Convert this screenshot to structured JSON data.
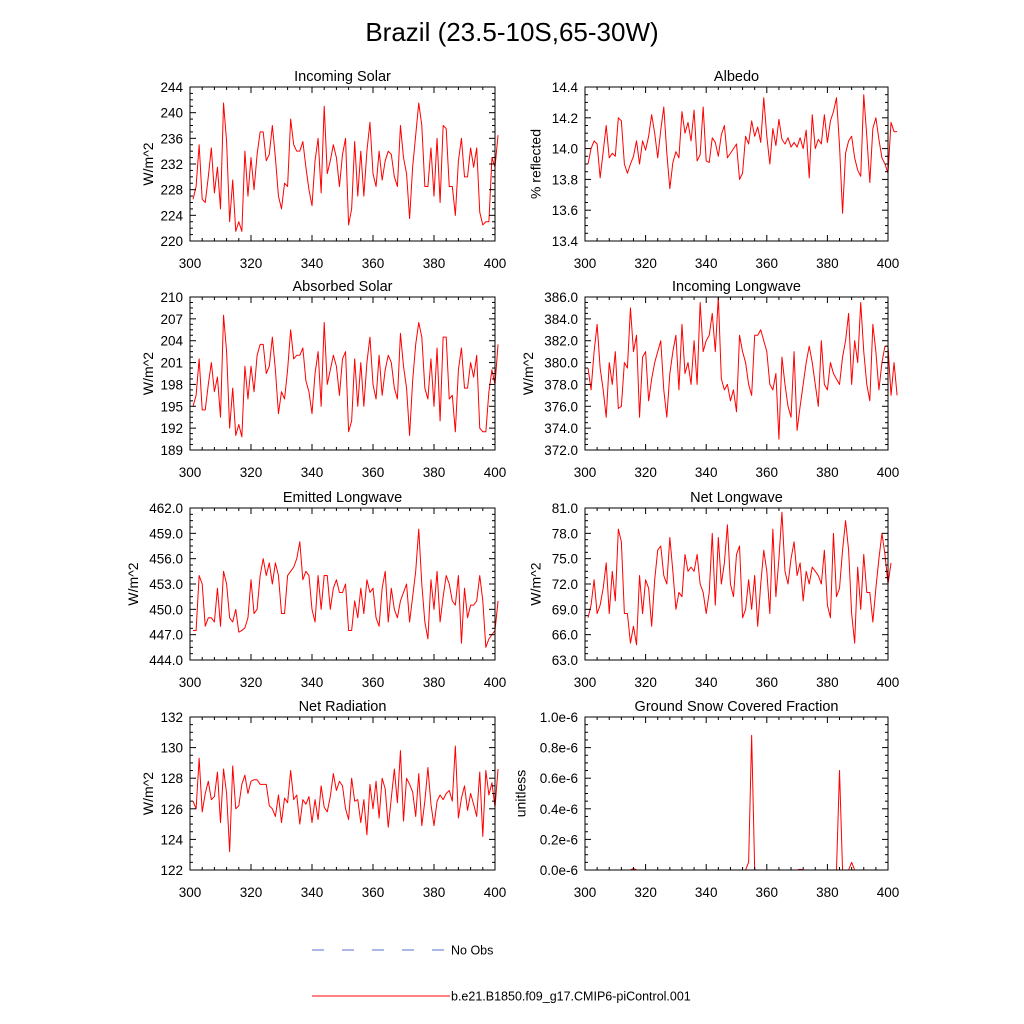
{
  "figure_title": "Brazil (23.5-10S,65-30W)",
  "legend": {
    "entries": [
      {
        "label": "No Obs",
        "color": "#5b6fd6",
        "style": "dashed"
      },
      {
        "label": "b.e21.B1850.f09_g17.CMIP6-piControl.001",
        "color": "#ff0000",
        "style": "solid"
      }
    ]
  },
  "chart_data": [
    {
      "type": "line",
      "title": "Incoming Solar",
      "ylabel": "W/m^2",
      "xlim": [
        300,
        400
      ],
      "xticks": [
        300,
        320,
        340,
        360,
        380,
        400
      ],
      "ylim": [
        220,
        244
      ],
      "yticks": [
        220,
        224,
        228,
        232,
        236,
        240,
        244
      ],
      "ytick_labels": [
        "220",
        "224",
        "228",
        "232",
        "236",
        "240",
        "244"
      ],
      "color": "#ff0000",
      "x_start": 301,
      "values": [
        226.5,
        228.5,
        235,
        226.5,
        226,
        230,
        234.5,
        227.5,
        231.5,
        225,
        241.5,
        235.5,
        223,
        229.5,
        221.5,
        223,
        221.5,
        234,
        227,
        233,
        228,
        233.5,
        237,
        237,
        232.5,
        233.5,
        238,
        233,
        227,
        225,
        229,
        228.5,
        239,
        235,
        234,
        234,
        235.5,
        231.5,
        228,
        225.5,
        232.5,
        236,
        227.5,
        241,
        230.5,
        232.5,
        235,
        233,
        228.5,
        233.5,
        236,
        222.5,
        225,
        235.5,
        227,
        234,
        227,
        234,
        238.5,
        230.5,
        228.5,
        234,
        229.5,
        232.5,
        234,
        233.5,
        230,
        228.5,
        238,
        233,
        230.5,
        223.5,
        231.5,
        236.5,
        241.5,
        238,
        228.5,
        228.5,
        234.5,
        227,
        236,
        226,
        238,
        237.5,
        228.5,
        228.5,
        224,
        232.5,
        236,
        230,
        230,
        234.5,
        231.5,
        234.5,
        224.5,
        222.5,
        223,
        223,
        233,
        231.5,
        236.5
      ]
    },
    {
      "type": "line",
      "title": "Albedo",
      "ylabel": "% reflected",
      "xlim": [
        300,
        400
      ],
      "xticks": [
        300,
        320,
        340,
        360,
        380,
        400
      ],
      "ylim": [
        13.4,
        14.4
      ],
      "yticks": [
        13.4,
        13.6,
        13.8,
        14.0,
        14.2,
        14.4
      ],
      "ytick_labels": [
        "13.4",
        "13.6",
        "13.8",
        "14.0",
        "14.2",
        "14.4"
      ],
      "color": "#ff0000",
      "x_start": 301,
      "values": [
        13.9,
        14,
        14.05,
        14.03,
        13.81,
        13.98,
        14.15,
        13.94,
        13.97,
        13.95,
        14.2,
        14.18,
        13.9,
        13.84,
        13.9,
        13.95,
        14.05,
        13.9,
        14.05,
        13.99,
        14.08,
        14.22,
        14.1,
        13.94,
        14.12,
        14.27,
        13.97,
        13.74,
        13.91,
        13.98,
        13.94,
        14.24,
        14.1,
        14.17,
        14.05,
        14.25,
        13.92,
        13.96,
        14.27,
        13.92,
        13.91,
        14.07,
        14.04,
        13.95,
        14.09,
        14.15,
        13.94,
        13.97,
        14.0,
        14.03,
        13.8,
        13.84,
        14.08,
        14.03,
        14.18,
        14.08,
        14.14,
        14.04,
        14.33,
        14.08,
        13.9,
        14.13,
        14.02,
        14.19,
        14.06,
        14.03,
        14.07,
        14.01,
        14.04,
        14.01,
        14.07,
        14.0,
        14.12,
        13.81,
        14.22,
        14.0,
        14.06,
        14.03,
        14.22,
        14.04,
        14.18,
        14.24,
        14.33,
        14.02,
        13.58,
        13.97,
        14.05,
        14.08,
        13.94,
        13.86,
        13.82,
        14.35,
        14.08,
        13.78,
        14.13,
        14.2,
        14.06,
        13.94,
        13.9,
        13.84,
        14.17,
        14.11,
        14.11
      ]
    },
    {
      "type": "line",
      "title": "Absorbed Solar",
      "ylabel": "W/m^2",
      "xlim": [
        300,
        400
      ],
      "xticks": [
        300,
        320,
        340,
        360,
        380,
        400
      ],
      "ylim": [
        189,
        210
      ],
      "yticks": [
        189,
        192,
        195,
        198,
        201,
        204,
        207,
        210
      ],
      "ytick_labels": [
        "189",
        "192",
        "195",
        "198",
        "201",
        "204",
        "207",
        "210"
      ],
      "color": "#ff0000",
      "x_start": 301,
      "values": [
        195,
        196.5,
        201.5,
        194.5,
        194.5,
        198,
        201,
        197,
        199,
        193.5,
        207.5,
        202.5,
        192,
        197.5,
        191,
        192.5,
        190.8,
        200.5,
        196,
        200.5,
        197,
        202,
        203.5,
        203.5,
        199.5,
        200.5,
        204.5,
        200,
        194,
        197,
        196,
        200,
        205.5,
        201.5,
        202,
        202,
        203,
        198.5,
        197,
        194,
        199.5,
        202.5,
        195,
        206.5,
        198,
        200,
        202,
        200.5,
        196.5,
        201.5,
        202.5,
        191.5,
        193,
        201.5,
        195,
        201,
        195,
        201,
        204.5,
        198,
        196,
        202,
        196.5,
        200,
        202,
        201,
        197.5,
        196,
        205,
        200.5,
        197.5,
        191,
        198.5,
        203.5,
        206.5,
        204.5,
        197.5,
        196,
        201.5,
        195,
        203,
        193,
        204.5,
        204.5,
        196,
        196.5,
        191.5,
        200,
        203,
        197.5,
        197.5,
        201,
        199,
        202,
        192,
        191.5,
        191.5,
        197,
        200,
        198,
        203.5
      ]
    },
    {
      "type": "line",
      "title": "Incoming Longwave",
      "ylabel": "W/m^2",
      "xlim": [
        300,
        400
      ],
      "xticks": [
        300,
        320,
        340,
        360,
        380,
        400
      ],
      "ylim": [
        372.0,
        386.0
      ],
      "yticks": [
        372.0,
        374.0,
        376.0,
        378.0,
        380.0,
        382.0,
        384.0,
        386.0
      ],
      "ytick_labels": [
        "372.0",
        "374.0",
        "376.0",
        "378.0",
        "380.0",
        "382.0",
        "384.0",
        "386.0"
      ],
      "color": "#ff0000",
      "x_start": 301,
      "values": [
        379.5,
        377.5,
        381,
        383.5,
        379.5,
        377.5,
        375,
        380,
        378,
        381,
        375.8,
        376,
        380,
        379.5,
        385,
        381,
        382.5,
        375,
        380.5,
        381,
        376.5,
        378.5,
        380,
        381,
        382,
        377.5,
        375,
        379,
        381,
        382.5,
        377.5,
        383.5,
        379,
        380,
        378,
        382,
        378,
        385.5,
        381,
        382,
        382.5,
        384.5,
        381,
        386,
        378.5,
        377.5,
        378,
        376.5,
        377.5,
        375.5,
        382.5,
        381,
        380,
        378,
        377,
        382.5,
        382.5,
        383,
        382,
        381,
        378,
        377.5,
        379,
        373,
        380.5,
        378,
        376,
        375,
        381,
        373.8,
        376,
        378,
        380,
        381.5,
        380,
        378,
        376,
        382,
        378,
        377.5,
        380,
        379,
        378.5,
        378,
        380.5,
        382,
        384.5,
        378,
        382,
        380,
        385.5,
        381,
        378,
        376.5,
        383.5,
        381,
        377.5,
        380,
        381.5,
        381.5,
        377,
        380,
        377
      ]
    },
    {
      "type": "line",
      "title": "Emitted Longwave",
      "ylabel": "W/m^2",
      "xlim": [
        300,
        400
      ],
      "xticks": [
        300,
        320,
        340,
        360,
        380,
        400
      ],
      "ylim": [
        444.0,
        462.0
      ],
      "yticks": [
        444.0,
        447.0,
        450.0,
        453.0,
        456.0,
        459.0,
        462.0
      ],
      "ytick_labels": [
        "444.0",
        "447.0",
        "450.0",
        "453.0",
        "456.0",
        "459.0",
        "462.0"
      ],
      "color": "#ff0000",
      "x_start": 301,
      "values": [
        447.5,
        447.5,
        454,
        453,
        448,
        449,
        449,
        448.5,
        452.5,
        448,
        454.5,
        453,
        449,
        448.5,
        450,
        447.3,
        447.5,
        447.8,
        449,
        453.5,
        449.5,
        450,
        454,
        456,
        454,
        455.5,
        453,
        455.5,
        454,
        449.5,
        449.5,
        454,
        454.5,
        455,
        456,
        458,
        453.5,
        454.5,
        454,
        450,
        448.5,
        454,
        450,
        454,
        454,
        450,
        452.5,
        453.5,
        452,
        452,
        453,
        447.5,
        447.5,
        451,
        449,
        452.5,
        449.5,
        453.5,
        452,
        452.5,
        449,
        448,
        452.5,
        454.5,
        448.5,
        452.5,
        450,
        449,
        451,
        452,
        453,
        448.5,
        451.5,
        454.5,
        459.5,
        453,
        448.5,
        446.5,
        453.5,
        450,
        454.5,
        448.5,
        451.5,
        454,
        453,
        451,
        450.5,
        454,
        446,
        452.5,
        449,
        450.5,
        450.5,
        451,
        454,
        451,
        445.5,
        446.5,
        447,
        447.5,
        451
      ]
    },
    {
      "type": "line",
      "title": "Net Longwave",
      "ylabel": "W/m^2",
      "xlim": [
        300,
        400
      ],
      "xticks": [
        300,
        320,
        340,
        360,
        380,
        400
      ],
      "ylim": [
        63.0,
        81.0
      ],
      "yticks": [
        63.0,
        66.0,
        69.0,
        72.0,
        75.0,
        78.0,
        81.0
      ],
      "ytick_labels": [
        "63.0",
        "66.0",
        "69.0",
        "72.0",
        "75.0",
        "78.0",
        "81.0"
      ],
      "color": "#ff0000",
      "x_start": 301,
      "values": [
        68,
        69.5,
        72.5,
        68.5,
        69.5,
        71.5,
        74.5,
        68.5,
        73.5,
        70,
        78.5,
        77,
        68.5,
        68.5,
        65,
        67,
        64.8,
        73,
        68.5,
        72.5,
        71.5,
        67,
        72.5,
        76,
        76.5,
        73,
        72,
        77.5,
        73.5,
        69,
        71,
        70.5,
        75.5,
        73.5,
        74,
        73.5,
        75.5,
        72,
        71,
        68.5,
        71,
        78,
        69.5,
        77.5,
        72,
        74.5,
        79,
        72,
        70.5,
        75.5,
        76.5,
        68,
        69,
        72.5,
        69,
        73,
        67,
        72,
        76,
        73.5,
        68.5,
        78.5,
        70.5,
        75,
        80.5,
        73.5,
        72,
        75,
        77,
        73,
        74.5,
        70,
        73.5,
        72,
        74,
        73.5,
        73,
        72,
        76,
        69.5,
        68,
        78,
        70.5,
        71.5,
        76,
        79.5,
        76,
        68.5,
        65,
        74,
        69,
        75.5,
        71,
        71,
        67.5,
        71.5,
        75,
        78,
        75.5,
        72,
        74.5
      ]
    },
    {
      "type": "line",
      "title": "Net Radiation",
      "ylabel": "W/m^2",
      "xlim": [
        300,
        400
      ],
      "xticks": [
        300,
        320,
        340,
        360,
        380,
        400
      ],
      "ylim": [
        122,
        132
      ],
      "yticks": [
        122,
        124,
        126,
        128,
        130,
        132
      ],
      "ytick_labels": [
        "122",
        "124",
        "126",
        "128",
        "130",
        "132"
      ],
      "color": "#ff0000",
      "x_start": 301,
      "values": [
        126.5,
        126,
        129.3,
        125.8,
        127,
        127.8,
        126.6,
        126.8,
        128.4,
        125.1,
        128.6,
        127,
        123.2,
        128.8,
        126,
        126.2,
        127.6,
        128.2,
        127,
        127.8,
        127.9,
        127.9,
        127.6,
        127.6,
        127.6,
        126.2,
        126,
        125.5,
        126.9,
        125.1,
        126.7,
        126.4,
        128.5,
        126.6,
        126.9,
        125,
        126.6,
        126.3,
        126.8,
        125.1,
        126.6,
        125.3,
        127.5,
        126.1,
        125.8,
        126.8,
        128.3,
        127.2,
        127.8,
        127.5,
        126,
        125.3,
        128,
        126.5,
        126.6,
        125.1,
        126.6,
        124.3,
        127.6,
        126,
        127.8,
        125.4,
        128,
        127.3,
        124.8,
        126.7,
        128.6,
        126.4,
        129.8,
        125.2,
        128,
        127.6,
        127.1,
        125.5,
        128.3,
        124.9,
        126.5,
        128.7,
        126.3,
        124.9,
        126.5,
        126.9,
        126.6,
        127,
        127.2,
        126.5,
        130.1,
        125.4,
        126.7,
        127.5,
        125.9,
        127,
        126.3,
        125.5,
        128.4,
        124.2,
        128.5,
        126.9,
        127.7,
        126.1,
        128.6
      ]
    },
    {
      "type": "line",
      "title": "Ground Snow Covered Fraction",
      "ylabel": "unitless",
      "xlim": [
        300,
        400
      ],
      "xticks": [
        300,
        320,
        340,
        360,
        380,
        400
      ],
      "ylim": [
        0,
        1e-06
      ],
      "yticks": [
        0,
        2e-07,
        4e-07,
        6e-07,
        8e-07,
        1e-06
      ],
      "ytick_labels": [
        "0.0e-6",
        "0.2e-6",
        "0.4e-6",
        "0.6e-6",
        "0.8e-6",
        "1.0e-6"
      ],
      "color": "#ff0000",
      "points": [
        [
          300,
          0
        ],
        [
          315,
          0
        ],
        [
          316,
          1e-08
        ],
        [
          317,
          0
        ],
        [
          352,
          0
        ],
        [
          353,
          0
        ],
        [
          354,
          5e-08
        ],
        [
          355,
          8.8e-07
        ],
        [
          356,
          0
        ],
        [
          370,
          0
        ],
        [
          371,
          5e-09
        ],
        [
          372,
          0
        ],
        [
          382,
          0
        ],
        [
          383,
          0
        ],
        [
          384,
          6.5e-07
        ],
        [
          385,
          0
        ],
        [
          387,
          0
        ],
        [
          388,
          5e-08
        ],
        [
          389,
          0
        ],
        [
          400,
          0
        ]
      ]
    }
  ]
}
